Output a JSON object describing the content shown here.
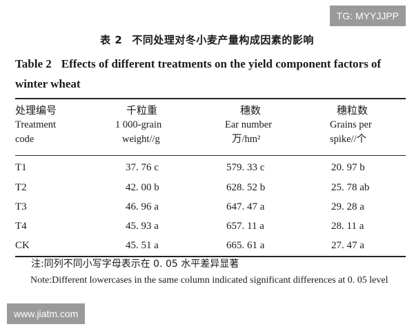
{
  "watermarks": {
    "top": "TG: MYYJJPP",
    "bottom": "www.jiatm.com"
  },
  "caption": {
    "cn_label": "表 2",
    "cn_title": "不同处理对冬小麦产量构成因素的影响",
    "en_label": "Table 2",
    "en_title": "Effects of different treatments on the yield component factors of winter wheat"
  },
  "table": {
    "headers": [
      {
        "cn": "处理编号",
        "en1": "Treatment",
        "en2": "code"
      },
      {
        "cn": "千粒重",
        "en1": "1 000-grain",
        "en2": "weight//g"
      },
      {
        "cn": "穗数",
        "en1": "Ear number",
        "en2": "万/hm²"
      },
      {
        "cn": "穗粒数",
        "en1": "Grains per",
        "en2": "spike//个"
      }
    ],
    "rows": [
      [
        "T1",
        "37. 76 c",
        "579. 33 c",
        "20. 97 b"
      ],
      [
        "T2",
        "42. 00 b",
        "628. 52 b",
        "25. 78 ab"
      ],
      [
        "T3",
        "46. 96 a",
        "647. 47 a",
        "29. 28 a"
      ],
      [
        "T4",
        "45. 93 a",
        "657. 11 a",
        "28. 11 a"
      ],
      [
        "CK",
        "45. 51 a",
        "665. 61 a",
        "27. 47 a"
      ]
    ]
  },
  "notes": {
    "cn": "注:同列不同小写字母表示在 0. 05 水平差异显著",
    "en": "Note:Different lowercases in the same column indicated significant differences at 0. 05 level"
  }
}
